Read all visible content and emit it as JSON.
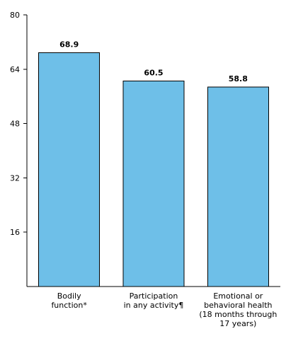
{
  "chart_data": {
    "type": "bar",
    "title": "",
    "xlabel": "",
    "ylabel": "",
    "categories": [
      [
        "Bodily",
        "function*"
      ],
      [
        "Participation",
        "in any activity¶"
      ],
      [
        "Emotional or",
        "behavioral health",
        "(18 months through",
        "17 years)"
      ]
    ],
    "values": [
      68.9,
      60.5,
      58.8
    ],
    "data_labels": [
      "68.9",
      "60.5",
      "58.8"
    ],
    "yticks": [
      16,
      32,
      48,
      64,
      80
    ],
    "ytick_labels": [
      "16",
      "32",
      "48",
      "64",
      "80"
    ],
    "ylim": [
      0,
      80
    ],
    "grid": false,
    "legend": "none",
    "bar_color": "#6ebfe8",
    "bar_edge_color": "#000000"
  }
}
